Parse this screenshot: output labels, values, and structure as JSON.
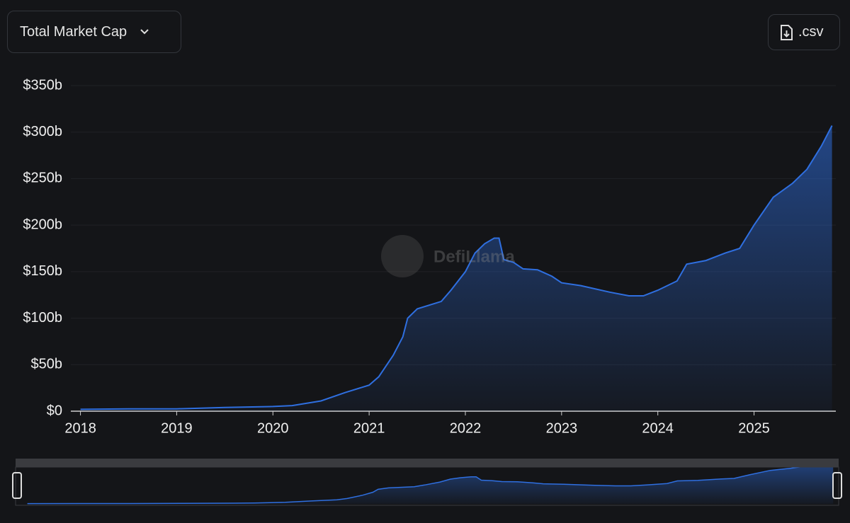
{
  "controls": {
    "selector": "Total Market Cap",
    "download": ".csv"
  },
  "watermark": "DefiLlama",
  "chart_data": {
    "type": "area",
    "x": [
      2018.0,
      2018.5,
      2019.0,
      2019.5,
      2020.0,
      2020.2,
      2020.5,
      2020.75,
      2021.0,
      2021.1,
      2021.25,
      2021.35,
      2021.4,
      2021.5,
      2021.75,
      2021.85,
      2022.0,
      2022.1,
      2022.2,
      2022.3,
      2022.35,
      2022.4,
      2022.5,
      2022.6,
      2022.75,
      2022.9,
      2023.0,
      2023.2,
      2023.5,
      2023.7,
      2023.85,
      2024.0,
      2024.2,
      2024.3,
      2024.5,
      2024.7,
      2024.85,
      2025.0,
      2025.2,
      2025.4,
      2025.55,
      2025.7,
      2025.81
    ],
    "values": [
      2,
      2.5,
      2.5,
      4,
      5,
      6,
      11,
      20,
      28,
      37,
      60,
      80,
      100,
      110,
      118,
      130,
      150,
      170,
      180,
      186,
      186,
      163,
      160,
      153,
      152,
      145,
      138,
      135,
      128,
      124,
      124,
      130,
      140,
      158,
      162,
      170,
      175,
      200,
      230,
      245,
      260,
      285,
      307
    ],
    "color": "#2f6fe0",
    "xlim": [
      2017.9,
      2025.85
    ],
    "xticks": [
      2018,
      2019,
      2020,
      2021,
      2022,
      2023,
      2024,
      2025
    ],
    "ylim": [
      0,
      350
    ],
    "yticks": [
      {
        "value": 0,
        "label": "$0"
      },
      {
        "value": 50,
        "label": "$50b"
      },
      {
        "value": 100,
        "label": "$100b"
      },
      {
        "value": 150,
        "label": "$150b"
      },
      {
        "value": 200,
        "label": "$200b"
      },
      {
        "value": 250,
        "label": "$250b"
      },
      {
        "value": 300,
        "label": "$300b"
      },
      {
        "value": 350,
        "label": "$350b"
      }
    ],
    "grid": true
  }
}
